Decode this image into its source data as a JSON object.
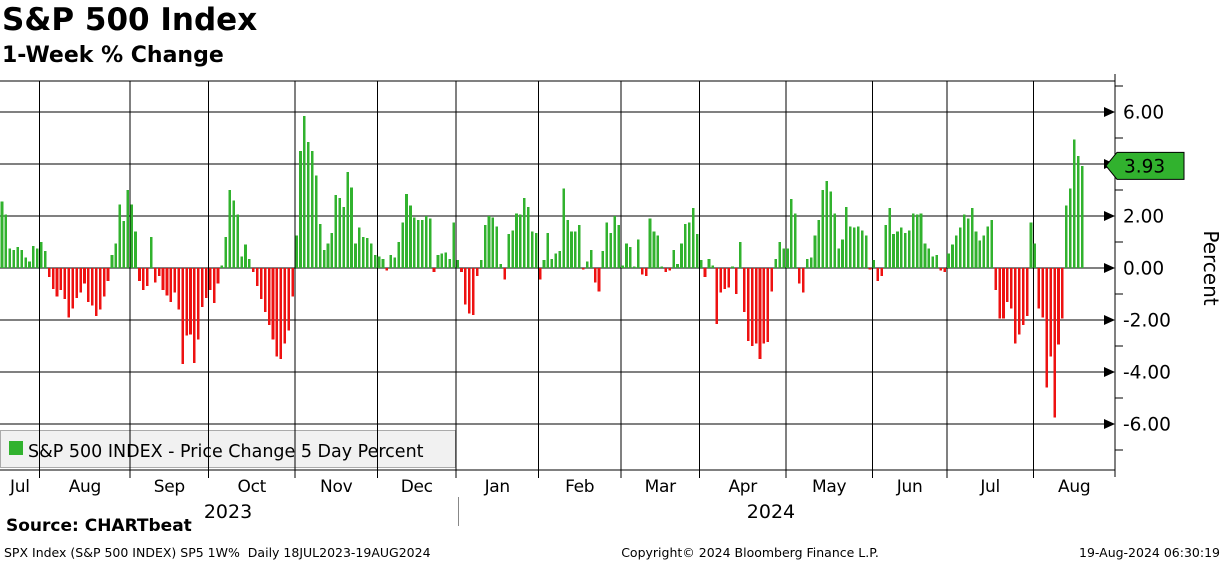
{
  "header": {
    "title": "S&P 500 Index",
    "subtitle": "1-Week % Change"
  },
  "legend": {
    "label": "S&P 500 INDEX - Price Change 5 Day Percent"
  },
  "y_axis": {
    "title": "Percent",
    "tick_labels": [
      "6.00",
      "4.00",
      "2.00",
      "0.00",
      "-2.00",
      "-4.00",
      "-6.00"
    ],
    "tick_values": [
      6,
      4,
      2,
      0,
      -2,
      -4,
      -6
    ],
    "minor_tick_values": [
      7,
      5,
      3,
      1,
      -1,
      -3,
      -5,
      -7
    ],
    "last_value_label": "3.93"
  },
  "x_axis": {
    "month_labels": [
      "Jul",
      "Aug",
      "Sep",
      "Oct",
      "Nov",
      "Dec",
      "Jan",
      "Feb",
      "Mar",
      "Apr",
      "May",
      "Jun",
      "Jul",
      "Aug"
    ],
    "year_labels": [
      "2023",
      "2024"
    ]
  },
  "footer": {
    "source": "Source: CHARTbeat",
    "meta_left": "SPX Index (S&P 500 INDEX) SP5 1W%  Daily 18JUL2023-19AUG2024",
    "meta_center": "Copyright© 2024 Bloomberg Finance L.P.",
    "meta_right": "19-Aug-2024 06:30:19"
  },
  "colors": {
    "positive": "#31b22e",
    "negative": "#ee1111",
    "grid": "#000000",
    "legend_bg": "#f1f1f1",
    "legend_border": "#aaaaaa",
    "badge_fill": "#31b22e",
    "year_divider": "#888888"
  },
  "chart_data": {
    "type": "bar",
    "title": "S&P 500 Index — 1-Week % Change",
    "ylabel": "Percent",
    "ylim": [
      -7,
      7
    ],
    "y_ticks": [
      6,
      4,
      2,
      0,
      -2,
      -4,
      -6
    ],
    "grid": true,
    "legend_position": "bottom-left",
    "series_name": "S&P 500 INDEX - Price Change 5 Day Percent",
    "date_range": "18JUL2023-19AUG2024",
    "last_value": 3.93,
    "month_start_index": [
      0,
      10,
      33,
      53,
      75,
      96,
      116,
      137,
      158,
      178,
      200,
      222,
      241,
      263
    ],
    "year_span_index": {
      "2023": [
        0,
        116
      ],
      "2024": [
        116,
        276
      ]
    },
    "values": [
      2.55,
      2.05,
      0.75,
      0.7,
      0.8,
      0.7,
      0.4,
      0.25,
      0.85,
      0.75,
      1.0,
      0.65,
      -0.35,
      -0.8,
      -1.1,
      -0.85,
      -1.2,
      -1.9,
      -1.55,
      -1.15,
      -0.95,
      -0.6,
      -1.3,
      -1.45,
      -1.85,
      -1.6,
      -1.1,
      -0.5,
      0.5,
      0.95,
      2.45,
      1.8,
      3.0,
      2.45,
      1.4,
      -0.5,
      -0.85,
      -0.7,
      1.2,
      -0.55,
      -0.3,
      -0.85,
      -1.05,
      -1.3,
      -0.95,
      -1.6,
      -3.7,
      -2.6,
      -2.55,
      -3.65,
      -2.75,
      -1.5,
      -1.15,
      -0.85,
      -1.35,
      -0.6,
      0.1,
      1.2,
      3.0,
      2.6,
      2.05,
      0.45,
      0.9,
      0.35,
      -0.15,
      -0.7,
      -1.2,
      -1.7,
      -2.2,
      -2.75,
      -3.4,
      -3.5,
      -2.9,
      -2.4,
      -1.1,
      1.25,
      4.5,
      5.85,
      4.85,
      4.5,
      3.55,
      1.7,
      0.7,
      0.95,
      1.35,
      2.8,
      2.7,
      2.35,
      3.7,
      3.1,
      0.95,
      1.55,
      1.2,
      1.15,
      0.95,
      0.5,
      0.45,
      0.35,
      -0.1,
      0.5,
      0.4,
      1.0,
      1.75,
      2.85,
      2.4,
      1.95,
      1.85,
      1.85,
      2.0,
      1.9,
      -0.15,
      0.5,
      0.55,
      0.6,
      0.35,
      1.75,
      0.3,
      -0.15,
      -1.4,
      -1.75,
      -1.8,
      -0.3,
      0.3,
      1.65,
      2.0,
      1.95,
      1.6,
      0.15,
      -0.45,
      1.3,
      1.45,
      2.1,
      2.05,
      2.7,
      2.35,
      1.4,
      1.35,
      -0.45,
      0.3,
      1.35,
      0.35,
      0.55,
      0.65,
      3.05,
      1.85,
      1.4,
      1.4,
      1.65,
      -0.05,
      0.25,
      0.7,
      -0.55,
      -0.9,
      0.65,
      1.75,
      1.35,
      2.0,
      1.65,
      0.1,
      0.95,
      0.8,
      0.05,
      1.1,
      -0.25,
      -0.3,
      1.9,
      1.4,
      1.25,
      0.05,
      -0.15,
      -0.1,
      0.7,
      0.15,
      0.95,
      1.7,
      1.75,
      2.3,
      1.3,
      0.3,
      -0.35,
      0.35,
      0.1,
      -2.15,
      -0.95,
      -0.8,
      -0.75,
      0.05,
      -1.0,
      1.0,
      -1.7,
      -2.8,
      -3.0,
      -2.9,
      -3.5,
      -2.9,
      -2.85,
      -0.9,
      0.35,
      1.0,
      0.75,
      0.75,
      2.65,
      2.1,
      -0.6,
      -0.95,
      0.35,
      0.4,
      1.25,
      1.85,
      3.0,
      3.35,
      2.95,
      2.1,
      0.75,
      1.1,
      2.35,
      1.6,
      1.55,
      1.6,
      1.45,
      1.25,
      -0.05,
      0.3,
      -0.5,
      -0.3,
      1.65,
      2.3,
      1.3,
      1.4,
      1.55,
      1.35,
      1.45,
      2.1,
      2.05,
      2.1,
      0.95,
      0.75,
      0.45,
      0.5,
      -0.1,
      -0.15,
      0.55,
      0.9,
      1.25,
      1.55,
      2.05,
      1.9,
      2.3,
      1.4,
      1.05,
      1.25,
      1.6,
      1.85,
      -0.85,
      -1.95,
      -1.95,
      -1.3,
      -1.55,
      -2.9,
      -2.55,
      -2.2,
      -1.85,
      1.75,
      0.95,
      -1.55,
      -1.9,
      -4.6,
      -3.4,
      -5.75,
      -2.95,
      -1.95,
      2.4,
      3.05,
      4.95,
      4.3,
      3.93
    ]
  }
}
